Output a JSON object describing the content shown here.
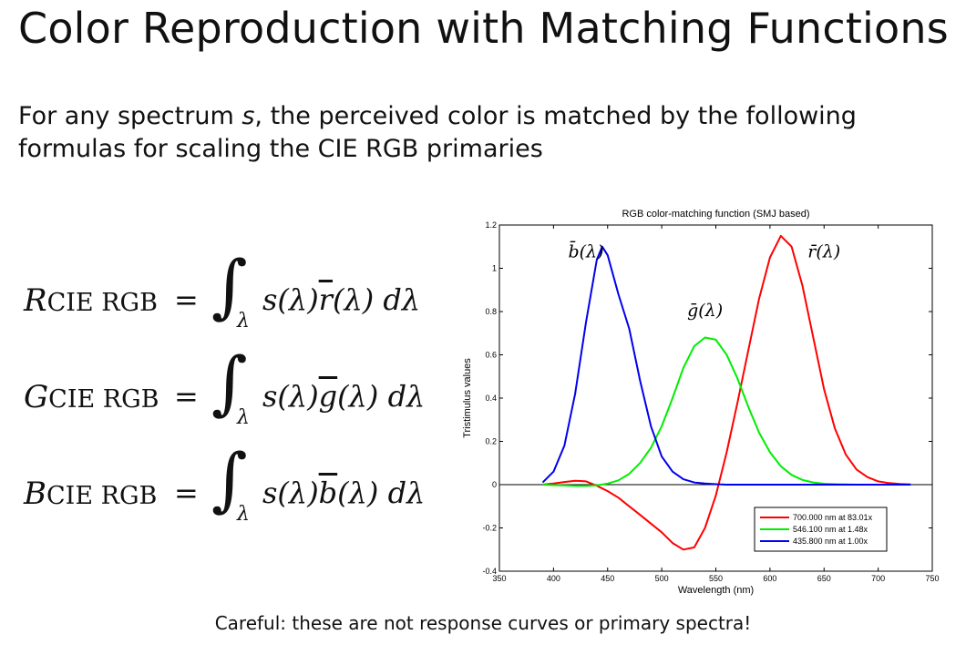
{
  "slide": {
    "title": "Color Reproduction with Matching Functions",
    "subtitle_pre": "For any spectrum ",
    "subtitle_var": "s",
    "subtitle_post": ", the perceived color is matched by the following formulas for scaling the CIE RGB primaries",
    "caption": "Careful: these are not response curves or primary spectra!"
  },
  "formulas": [
    {
      "symbol": "R",
      "subscript": "CIE RGB",
      "equals": "=",
      "integral": "∫",
      "limit": "λ",
      "pre": "s(λ)",
      "func": "r",
      "post": "(λ) dλ"
    },
    {
      "symbol": "G",
      "subscript": "CIE RGB",
      "equals": "=",
      "integral": "∫",
      "limit": "λ",
      "pre": "s(λ)",
      "func": "g",
      "post": "(λ) dλ"
    },
    {
      "symbol": "B",
      "subscript": "CIE RGB",
      "equals": "=",
      "integral": "∫",
      "limit": "λ",
      "pre": "s(λ)",
      "func": "b",
      "post": "(λ) dλ"
    }
  ],
  "chart_data": {
    "type": "line",
    "title": "RGB color-matching function (SMJ based)",
    "xlabel": "Wavelength (nm)",
    "ylabel": "Tristimulus values",
    "xlim": [
      350,
      750
    ],
    "ylim": [
      -0.4,
      1.2
    ],
    "xticks": [
      350,
      400,
      450,
      500,
      550,
      600,
      650,
      700,
      750
    ],
    "yticks": [
      -0.4,
      -0.2,
      0,
      0.2,
      0.4,
      0.6,
      0.8,
      1,
      1.2
    ],
    "legend_position": "bottom-right",
    "series": [
      {
        "name": "700.000 nm at 83.01x",
        "label": "r̄(λ)",
        "color": "#ff0000",
        "x": [
          390,
          400,
          410,
          420,
          430,
          440,
          450,
          460,
          470,
          480,
          490,
          500,
          510,
          520,
          530,
          540,
          550,
          560,
          570,
          580,
          590,
          600,
          610,
          620,
          630,
          640,
          650,
          660,
          670,
          680,
          690,
          700,
          710,
          720,
          730
        ],
        "y": [
          0.0,
          0.005,
          0.012,
          0.018,
          0.015,
          -0.005,
          -0.03,
          -0.06,
          -0.1,
          -0.14,
          -0.18,
          -0.22,
          -0.27,
          -0.3,
          -0.29,
          -0.2,
          -0.05,
          0.15,
          0.38,
          0.62,
          0.86,
          1.05,
          1.15,
          1.1,
          0.92,
          0.68,
          0.44,
          0.26,
          0.14,
          0.07,
          0.035,
          0.015,
          0.007,
          0.003,
          0.001
        ]
      },
      {
        "name": "546.100 nm at 1.48x",
        "label": "ḡ(λ)",
        "color": "#00ee00",
        "x": [
          390,
          400,
          410,
          420,
          430,
          440,
          450,
          460,
          470,
          480,
          490,
          500,
          510,
          520,
          530,
          540,
          550,
          560,
          570,
          580,
          590,
          600,
          610,
          620,
          630,
          640,
          650,
          660,
          670,
          680,
          690,
          700,
          710,
          720,
          730
        ],
        "y": [
          0.0,
          -0.002,
          -0.004,
          -0.006,
          -0.006,
          -0.003,
          0.005,
          0.02,
          0.05,
          0.1,
          0.17,
          0.27,
          0.4,
          0.54,
          0.64,
          0.68,
          0.67,
          0.6,
          0.49,
          0.36,
          0.24,
          0.15,
          0.085,
          0.045,
          0.022,
          0.01,
          0.004,
          0.002,
          0.001,
          0.0,
          0.0,
          0.0,
          0.0,
          0.0,
          0.0
        ]
      },
      {
        "name": "435.800 nm at 1.00x",
        "label": "b̄(λ)",
        "color": "#0000ee",
        "x": [
          390,
          400,
          410,
          420,
          430,
          440,
          445,
          450,
          460,
          470,
          480,
          490,
          500,
          510,
          520,
          530,
          540,
          550,
          560,
          570,
          580,
          590,
          600,
          610,
          620,
          630,
          640,
          650,
          660,
          670,
          680,
          690,
          700,
          710,
          720,
          730
        ],
        "y": [
          0.01,
          0.06,
          0.18,
          0.42,
          0.75,
          1.04,
          1.1,
          1.06,
          0.88,
          0.72,
          0.48,
          0.27,
          0.13,
          0.06,
          0.025,
          0.01,
          0.005,
          0.002,
          0.0,
          0.0,
          0.0,
          0.0,
          0.0,
          0.0,
          0.0,
          0.0,
          0.0,
          0.0,
          0.0,
          0.0,
          0.0,
          0.0,
          0.0,
          0.0,
          0.0,
          0.0
        ]
      }
    ],
    "curve_labels": [
      {
        "text": "b̄(λ)",
        "x": 430,
        "y": 1.05
      },
      {
        "text": "ḡ(λ)",
        "x": 540,
        "y": 0.78
      },
      {
        "text": "r̄(λ)",
        "x": 650,
        "y": 1.05
      }
    ]
  }
}
